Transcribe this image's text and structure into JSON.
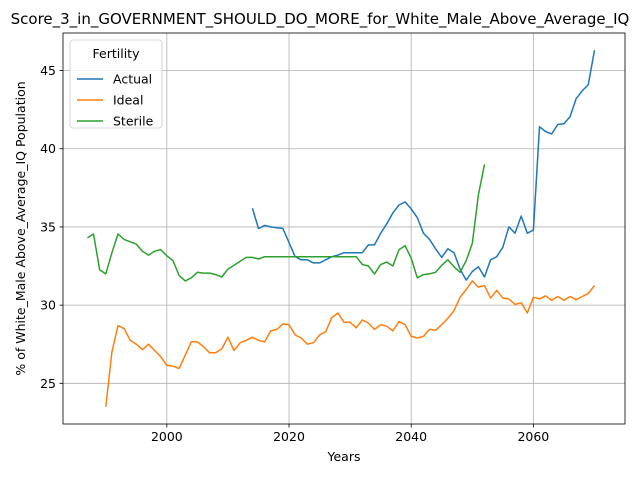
{
  "chart_data": {
    "type": "line",
    "title": "Score_3_in_GOVERNMENT_SHOULD_DO_MORE_for_White_Male_Above_Average_IQ",
    "xlabel": "Years",
    "ylabel": "% of White_Male Above_Average_IQ Population",
    "xlim": [
      1983,
      2075
    ],
    "ylim": [
      22.4,
      47.4
    ],
    "xticks": [
      2000,
      2020,
      2040,
      2060
    ],
    "yticks": [
      25,
      30,
      35,
      40,
      45
    ],
    "grid": true,
    "legend": {
      "title": "Fertility",
      "placement": "top-left"
    },
    "series": [
      {
        "name": "Actual",
        "color": "#1f77b4",
        "x": [
          2014,
          2015,
          2016,
          2017,
          2018,
          2019,
          2020,
          2021,
          2022,
          2023,
          2024,
          2025,
          2026,
          2027,
          2028,
          2029,
          2030,
          2031,
          2032,
          2033,
          2034,
          2035,
          2036,
          2037,
          2038,
          2039,
          2040,
          2041,
          2042,
          2043,
          2044,
          2045,
          2046,
          2047,
          2048,
          2049,
          2050,
          2051,
          2052,
          2053,
          2054,
          2055,
          2056,
          2057,
          2058,
          2059,
          2060,
          2061,
          2062,
          2063,
          2064,
          2065,
          2066,
          2067,
          2068,
          2069,
          2070
        ],
        "values": [
          36.2,
          34.9,
          35.1,
          35.0,
          34.95,
          34.9,
          34.0,
          33.1,
          32.9,
          32.9,
          32.7,
          32.7,
          32.9,
          33.1,
          33.2,
          33.35,
          33.35,
          33.35,
          33.35,
          33.85,
          33.85,
          34.6,
          35.2,
          35.9,
          36.4,
          36.6,
          36.15,
          35.6,
          34.6,
          34.2,
          33.6,
          33.05,
          33.6,
          33.35,
          32.3,
          31.6,
          32.15,
          32.45,
          31.8,
          32.9,
          33.1,
          33.7,
          35.0,
          34.6,
          35.7,
          34.6,
          34.8,
          41.4,
          41.1,
          40.95,
          41.55,
          41.6,
          42.05,
          43.2,
          43.7,
          44.1,
          46.3
        ]
      },
      {
        "name": "Ideal",
        "color": "#ff7f0e",
        "x": [
          1990,
          1991,
          1992,
          1993,
          1994,
          1995,
          1996,
          1997,
          1998,
          1999,
          2000,
          2001,
          2002,
          2003,
          2004,
          2005,
          2006,
          2007,
          2008,
          2009,
          2010,
          2011,
          2012,
          2013,
          2014,
          2015,
          2016,
          2017,
          2018,
          2019,
          2020,
          2021,
          2022,
          2023,
          2024,
          2025,
          2026,
          2027,
          2028,
          2029,
          2030,
          2031,
          2032,
          2033,
          2034,
          2035,
          2036,
          2037,
          2038,
          2039,
          2040,
          2041,
          2042,
          2043,
          2044,
          2045,
          2046,
          2047,
          2048,
          2049,
          2050,
          2051,
          2052,
          2053,
          2054,
          2055,
          2056,
          2057,
          2058,
          2059,
          2060,
          2061,
          2062,
          2063,
          2064,
          2065,
          2066,
          2067,
          2068,
          2069,
          2070
        ],
        "values": [
          23.5,
          27.0,
          28.7,
          28.5,
          27.75,
          27.5,
          27.15,
          27.5,
          27.1,
          26.7,
          26.15,
          26.1,
          25.95,
          26.8,
          27.65,
          27.65,
          27.35,
          26.95,
          26.95,
          27.2,
          27.95,
          27.1,
          27.6,
          27.75,
          27.95,
          27.75,
          27.65,
          28.35,
          28.45,
          28.8,
          28.75,
          28.1,
          27.9,
          27.5,
          27.6,
          28.1,
          28.3,
          29.2,
          29.5,
          28.9,
          28.9,
          28.55,
          29.05,
          28.85,
          28.45,
          28.75,
          28.65,
          28.35,
          28.95,
          28.75,
          28.0,
          27.9,
          28.0,
          28.45,
          28.4,
          28.75,
          29.15,
          29.65,
          30.5,
          31.0,
          31.55,
          31.15,
          31.25,
          30.45,
          30.95,
          30.45,
          30.4,
          30.05,
          30.15,
          29.5,
          30.5,
          30.4,
          30.6,
          30.3,
          30.55,
          30.3,
          30.55,
          30.35,
          30.55,
          30.75,
          31.25
        ]
      },
      {
        "name": "Sterile",
        "color": "#2ca02c",
        "x": [
          1987,
          1988,
          1989,
          1990,
          1991,
          1992,
          1993,
          1994,
          1995,
          1996,
          1997,
          1998,
          1999,
          2000,
          2001,
          2002,
          2003,
          2004,
          2005,
          2006,
          2007,
          2008,
          2009,
          2010,
          2011,
          2012,
          2013,
          2014,
          2015,
          2016,
          2017,
          2018,
          2019,
          2020,
          2021,
          2022,
          2023,
          2024,
          2025,
          2026,
          2027,
          2028,
          2029,
          2030,
          2031,
          2032,
          2033,
          2034,
          2035,
          2036,
          2037,
          2038,
          2039,
          2040,
          2041,
          2042,
          2043,
          2044,
          2045,
          2046,
          2047,
          2048,
          2049,
          2050,
          2051,
          2052
        ],
        "values": [
          34.3,
          34.55,
          32.25,
          32.0,
          33.35,
          34.55,
          34.2,
          34.05,
          33.9,
          33.45,
          33.2,
          33.45,
          33.55,
          33.15,
          32.85,
          31.9,
          31.55,
          31.75,
          32.1,
          32.05,
          32.05,
          31.95,
          31.8,
          32.3,
          32.55,
          32.8,
          33.05,
          33.05,
          32.95,
          33.1,
          33.1,
          33.1,
          33.1,
          33.1,
          33.1,
          33.1,
          33.1,
          33.1,
          33.1,
          33.1,
          33.1,
          33.1,
          33.1,
          33.1,
          33.1,
          32.6,
          32.5,
          32.0,
          32.6,
          32.75,
          32.5,
          33.55,
          33.8,
          33.0,
          31.75,
          31.95,
          32.0,
          32.1,
          32.55,
          32.9,
          32.45,
          32.1,
          32.85,
          33.95,
          37.05,
          39.0
        ]
      }
    ]
  }
}
